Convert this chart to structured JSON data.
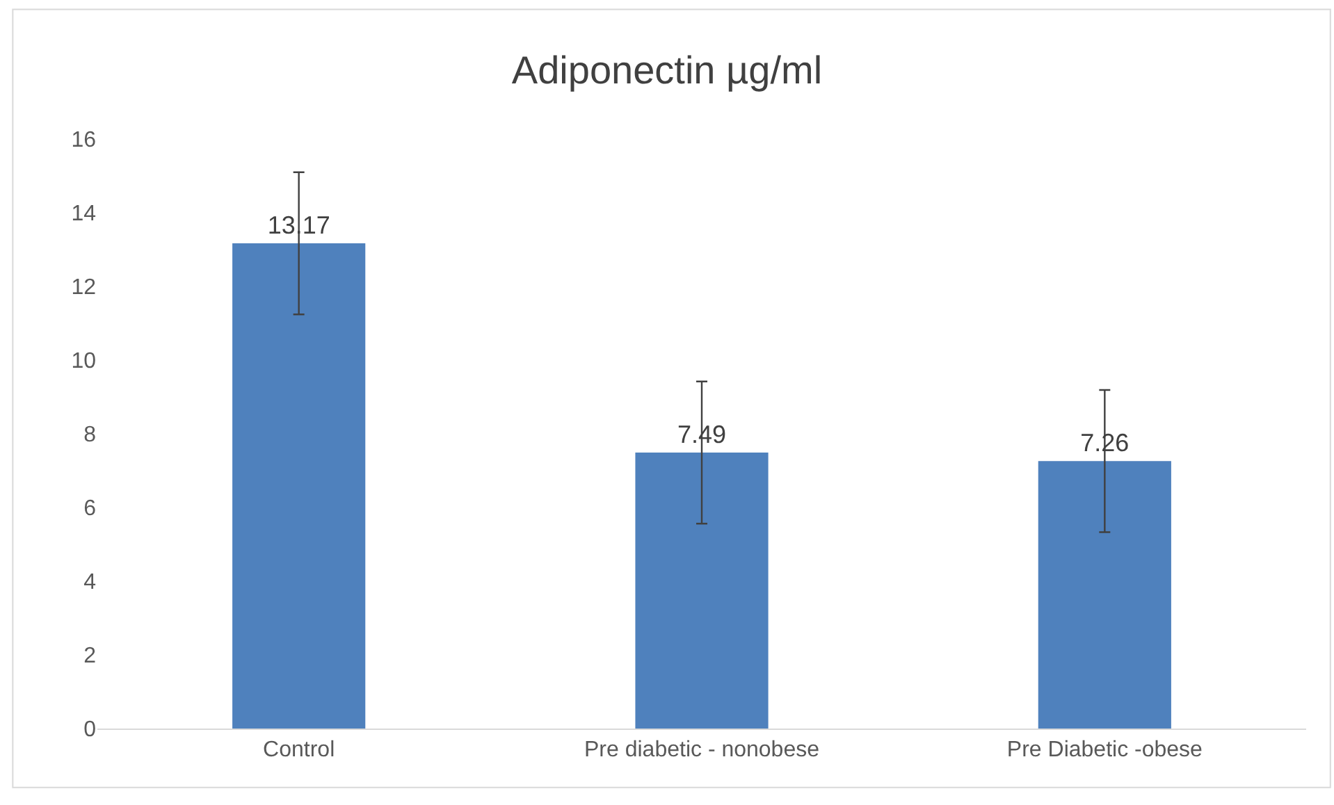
{
  "chart_data": {
    "type": "bar",
    "title": "Adiponectin µg/ml",
    "categories": [
      "Control",
      "Pre diabetic - nonobese",
      "Pre Diabetic -obese"
    ],
    "values": [
      13.17,
      7.49,
      7.26
    ],
    "errors": [
      1.93,
      1.93,
      1.93
    ],
    "color": "#4f81bd",
    "ylim": [
      0,
      16
    ],
    "yticks": [
      0,
      2,
      4,
      6,
      8,
      10,
      12,
      14,
      16
    ],
    "data_labels": true,
    "grid": false
  }
}
